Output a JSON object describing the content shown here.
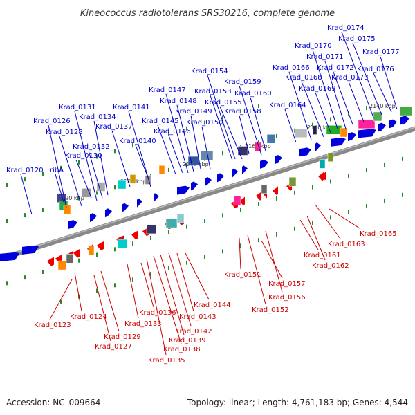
{
  "title": "Kineococcus radiotolerans SRS30216, complete genome",
  "footer": {
    "accession": "Accession: NC_009664",
    "stats": "Topology: linear; Length: 4,761,183 bp; Genes: 4,544"
  },
  "colors": {
    "forward_label": "#0000cc",
    "reverse_label": "#cc0000",
    "forward_gene": "#0000dd",
    "reverse_gene": "#ee0000",
    "axis": "#888888",
    "tick": "#2a8a2a"
  },
  "scale_marks": [
    "2190 kbp",
    "2180 kbp",
    "2170 kbp",
    "2160 kbp",
    "2150 kbp",
    "2140 kbp"
  ],
  "forward_genes": [
    "Krad_0120",
    "ribA",
    "Krad_0126",
    "Krad_0128",
    "Krad_0130",
    "Krad_0131",
    "Krad_0132",
    "Krad_0134",
    "Krad_0137",
    "Krad_0140",
    "Krad_0141",
    "Krad_0145",
    "Krad_0146",
    "Krad_0147",
    "Krad_0148",
    "Krad_0149",
    "Krad_0150",
    "Krad_0153",
    "Krad_0154",
    "Krad_0155",
    "Krad_0158",
    "Krad_0159",
    "Krad_0160",
    "Krad_0164",
    "Krad_0166",
    "Krad_0168",
    "Krad_0169",
    "Krad_0170",
    "Krad_0171",
    "Krad_0172",
    "Krad_0173",
    "Krad_0174",
    "Krad_0175",
    "Krad_0176",
    "Krad_0177"
  ],
  "reverse_genes": [
    "Krad_0123",
    "Krad_0124",
    "Krad_0127",
    "Krad_0129",
    "Krad_0133",
    "Krad_0135",
    "Krad_0136",
    "Krad_0138",
    "Krad_0139",
    "Krad_0142",
    "Krad_0143",
    "Krad_0144",
    "Krad_0151",
    "Krad_0152",
    "Krad_0156",
    "Krad_0157",
    "Krad_0161",
    "Krad_0162",
    "Krad_0163",
    "Krad_0165"
  ]
}
